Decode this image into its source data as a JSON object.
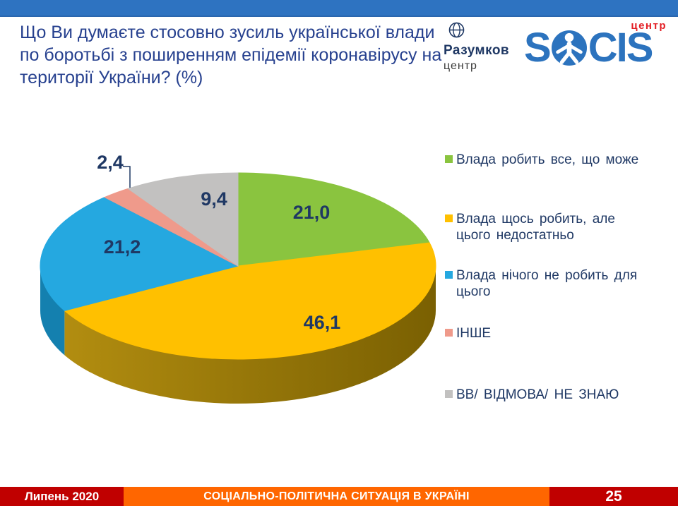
{
  "slide": {
    "title_lines": [
      "Що Ви думаєте стосовно зусиль української влади",
      "по боротьбі з поширенням епідемії коронавірусу на",
      "території України? (%)"
    ],
    "footer": {
      "date": "Липень 2020",
      "subject": "СОЦІАЛЬНО-ПОЛІТИЧНА СИТУАЦІЯ В УКРАЇНІ",
      "page_number": "25"
    }
  },
  "logos": {
    "razumkov": {
      "name": "Разумков",
      "subtitle": "центр"
    },
    "socis": {
      "letters_prefix": "S",
      "letters_suffix": "CIS",
      "subtitle": "центр"
    }
  },
  "colors": {
    "header_bar": "#2E73C1",
    "footer_dark_red": "#C00000",
    "footer_orange": "#FF6600",
    "title_text": "#27418F",
    "value_label_text": "#1F3864",
    "socis_blue": "#2C73BE",
    "socis_red": "#E31E24"
  },
  "chart_data": {
    "type": "pie",
    "style": "3d",
    "unit": "%",
    "start_angle_deg": 0,
    "direction": "clockwise",
    "legend_position": "right",
    "slices": [
      {
        "name": "Влада робить все, що може",
        "value": 21.0,
        "label": "21,0",
        "color": "#8AC43F"
      },
      {
        "name": "Влада щось робить, але цього недостатньо",
        "legend_lines": [
          "Влада щось робить, але",
          "цього недостатньо"
        ],
        "value": 46.1,
        "label": "46,1",
        "color": "#FFC000",
        "side_color": [
          "#B28D10",
          "#7A6002"
        ]
      },
      {
        "name": "Влада нічого не робить для цього",
        "legend_lines": [
          "Влада нічого не робить для",
          "цього"
        ],
        "value": 21.2,
        "label": "21,2",
        "color": "#25A8E0",
        "side_color": [
          "#1480AF",
          "#1480AF"
        ]
      },
      {
        "name": "ІНШЕ",
        "value": 2.4,
        "label": "2,4",
        "color": "#EF9A8B"
      },
      {
        "name": "ВВ/ ВІДМОВА/ НЕ ЗНАЮ",
        "value": 9.4,
        "label": "9,4",
        "color": "#C2C1C0"
      }
    ]
  }
}
